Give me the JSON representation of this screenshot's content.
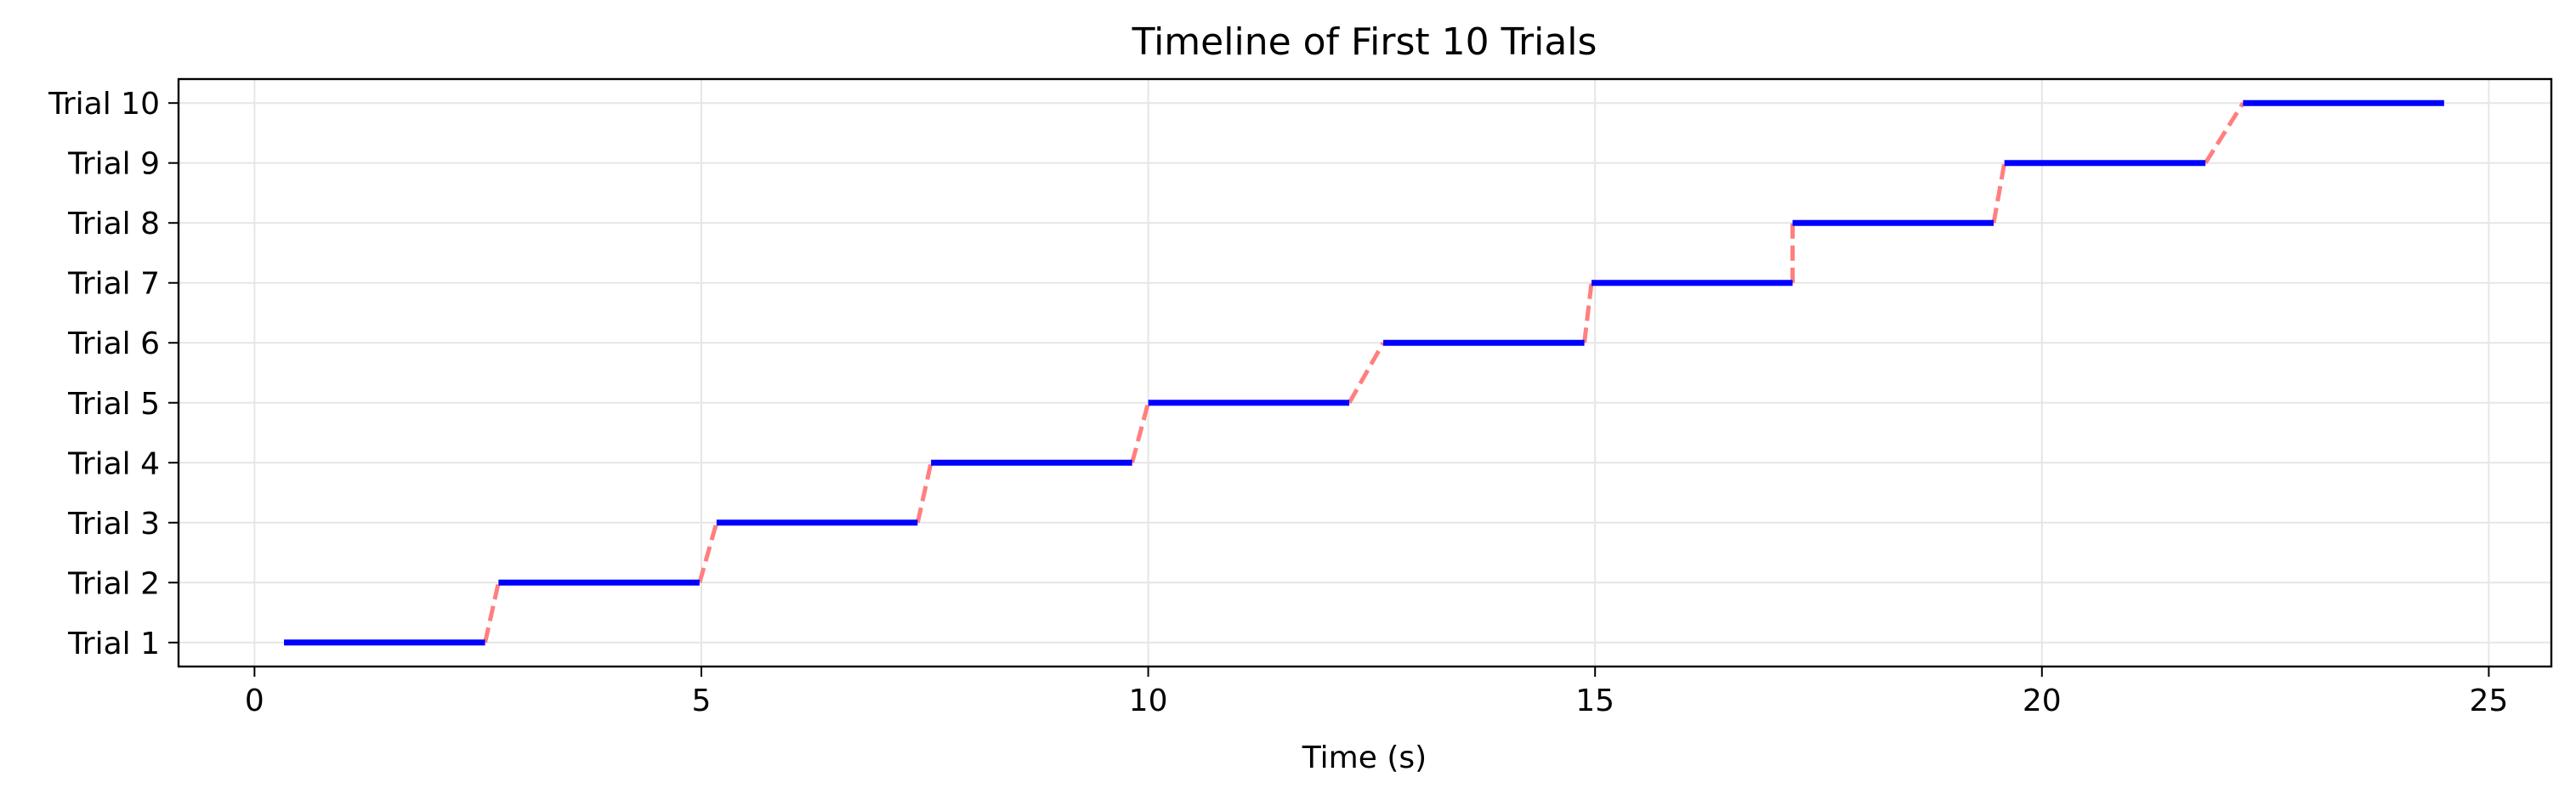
{
  "chart_data": {
    "type": "line",
    "title": "Timeline of First 10 Trials",
    "xlabel": "Time (s)",
    "ylabel": "",
    "xlim": [
      -0.85,
      25.7
    ],
    "ylim": [
      0.6,
      10.4
    ],
    "x_ticks": [
      0,
      5,
      10,
      15,
      20,
      25
    ],
    "x_tick_labels": [
      "0",
      "5",
      "10",
      "15",
      "20",
      "25"
    ],
    "y_ticks": [
      1,
      2,
      3,
      4,
      5,
      6,
      7,
      8,
      9,
      10
    ],
    "y_tick_labels": [
      "Trial 1",
      "Trial 2",
      "Trial 3",
      "Trial 4",
      "Trial 5",
      "Trial 6",
      "Trial 7",
      "Trial 8",
      "Trial 9",
      "Trial 10"
    ],
    "grid": true,
    "colors": {
      "trial": "#0000ff",
      "transition": "#ff7f7f",
      "grid": "#e6e6e6"
    },
    "series": [
      {
        "kind": "trial-segments",
        "segments": [
          {
            "y": 1,
            "start": 0.33,
            "end": 2.58
          },
          {
            "y": 2,
            "start": 2.73,
            "end": 4.98
          },
          {
            "y": 3,
            "start": 5.17,
            "end": 7.42
          },
          {
            "y": 4,
            "start": 7.57,
            "end": 9.82
          },
          {
            "y": 5,
            "start": 10.0,
            "end": 12.25
          },
          {
            "y": 6,
            "start": 12.63,
            "end": 14.88
          },
          {
            "y": 7,
            "start": 14.96,
            "end": 17.21
          },
          {
            "y": 8,
            "start": 17.21,
            "end": 19.46
          },
          {
            "y": 9,
            "start": 19.58,
            "end": 21.83
          },
          {
            "y": 10,
            "start": 22.25,
            "end": 24.5
          }
        ]
      },
      {
        "kind": "transitions",
        "style": "dashed",
        "links": [
          {
            "x0": 2.58,
            "y0": 1,
            "x1": 2.73,
            "y1": 2
          },
          {
            "x0": 4.98,
            "y0": 2,
            "x1": 5.17,
            "y1": 3
          },
          {
            "x0": 7.42,
            "y0": 3,
            "x1": 7.57,
            "y1": 4
          },
          {
            "x0": 9.82,
            "y0": 4,
            "x1": 10.0,
            "y1": 5
          },
          {
            "x0": 12.25,
            "y0": 5,
            "x1": 12.63,
            "y1": 6
          },
          {
            "x0": 14.88,
            "y0": 6,
            "x1": 14.96,
            "y1": 7
          },
          {
            "x0": 17.21,
            "y0": 7,
            "x1": 17.21,
            "y1": 8
          },
          {
            "x0": 19.46,
            "y0": 8,
            "x1": 19.58,
            "y1": 9
          },
          {
            "x0": 21.83,
            "y0": 9,
            "x1": 22.25,
            "y1": 10
          }
        ]
      }
    ]
  }
}
